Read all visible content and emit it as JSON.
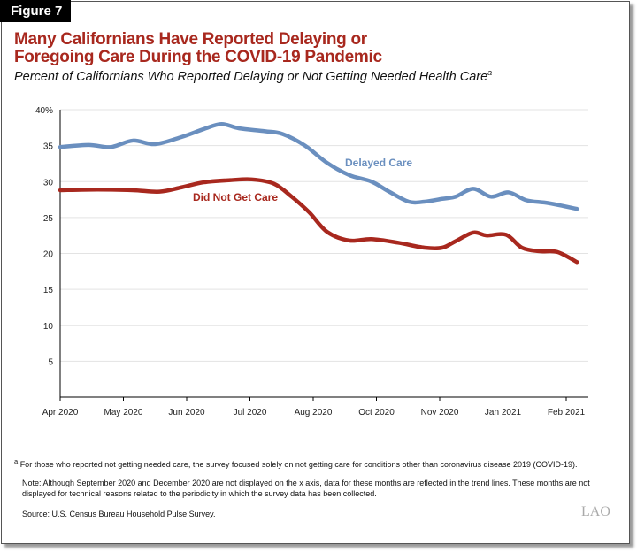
{
  "figure_label": "Figure 7",
  "title_line1": "Many Californians Have Reported Delaying or",
  "title_line2": "Foregoing Care During the COVID-19 Pandemic",
  "subtitle": "Percent of Californians Who Reported Delaying or Not Getting Needed Health Care",
  "subtitle_note": "a",
  "footnote_marker": "a",
  "footnote": "For those who reported not getting needed care, the survey focused solely on not getting care for conditions other than coronavirus disease 2019 (COVID-19).",
  "note_line1": "Note: Although September 2020 and December 2020 are not displayed on the x axis, data for these months are reflected in the trend lines. These months are not",
  "note_line2": "displayed for technical reasons related to the periodicity in which the survey data has been collected.",
  "source": "Source: U.S. Census Bureau Household Pulse Survey.",
  "logo": "LAO",
  "chart_data": {
    "type": "line",
    "title": "",
    "xlabel": "",
    "ylabel": "",
    "ylim": [
      0,
      40
    ],
    "yticks": [
      "5",
      "10",
      "15",
      "20",
      "25",
      "30",
      "35",
      "40%"
    ],
    "ytick_values": [
      5,
      10,
      15,
      20,
      25,
      30,
      35,
      40
    ],
    "categories": [
      "Apr 2020",
      "May 2020",
      "Jun 2020",
      "Jul 2020",
      "Aug 2020",
      "Oct 2020",
      "Nov 2020",
      "Jan 2021",
      "Feb 2021"
    ],
    "grid": true,
    "series": [
      {
        "name": "Delayed Care",
        "color": "#6a8fbf",
        "points": [
          [
            0,
            34.8
          ],
          [
            0.45,
            35.1
          ],
          [
            0.8,
            34.8
          ],
          [
            1.15,
            35.7
          ],
          [
            1.5,
            35.2
          ],
          [
            1.92,
            36.2
          ],
          [
            2.27,
            37.3
          ],
          [
            2.55,
            38.0
          ],
          [
            2.83,
            37.4
          ],
          [
            3.24,
            37.0
          ],
          [
            3.52,
            36.6
          ],
          [
            3.87,
            35.0
          ],
          [
            4.22,
            32.6
          ],
          [
            4.57,
            30.9
          ],
          [
            4.92,
            30.0
          ],
          [
            5.2,
            28.6
          ],
          [
            5.51,
            27.2
          ],
          [
            5.76,
            27.2
          ],
          [
            6.04,
            27.6
          ],
          [
            6.25,
            27.9
          ],
          [
            6.53,
            29.0
          ],
          [
            6.81,
            27.9
          ],
          [
            7.09,
            28.5
          ],
          [
            7.37,
            27.4
          ],
          [
            7.72,
            27.0
          ],
          [
            8.17,
            26.2
          ]
        ]
      },
      {
        "name": "Did Not Get Care",
        "color": "#a8281e",
        "points": [
          [
            0,
            28.8
          ],
          [
            0.59,
            28.9
          ],
          [
            1.15,
            28.8
          ],
          [
            1.57,
            28.6
          ],
          [
            1.92,
            29.2
          ],
          [
            2.27,
            29.9
          ],
          [
            2.69,
            30.2
          ],
          [
            3.03,
            30.3
          ],
          [
            3.38,
            29.7
          ],
          [
            3.66,
            27.9
          ],
          [
            3.94,
            25.7
          ],
          [
            4.22,
            23.0
          ],
          [
            4.57,
            21.8
          ],
          [
            4.92,
            22.0
          ],
          [
            5.34,
            21.5
          ],
          [
            5.76,
            20.8
          ],
          [
            6.04,
            20.8
          ],
          [
            6.25,
            21.7
          ],
          [
            6.53,
            22.9
          ],
          [
            6.74,
            22.5
          ],
          [
            7.05,
            22.6
          ],
          [
            7.3,
            20.8
          ],
          [
            7.58,
            20.3
          ],
          [
            7.86,
            20.2
          ],
          [
            8.17,
            18.8
          ]
        ]
      }
    ]
  }
}
